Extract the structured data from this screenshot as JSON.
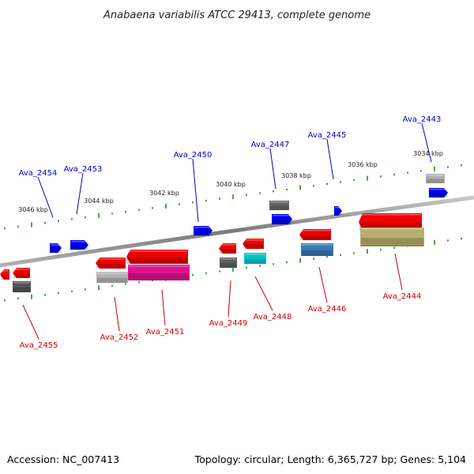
{
  "title": "Anabaena variabilis ATCC 29413, complete genome",
  "footer": {
    "accession": "Accession: NC_007413",
    "summary": "Topology: circular; Length: 6,365,727 bp; Genes: 5,104"
  },
  "colors": {
    "forward_label": "#0000cc",
    "reverse_label": "#cc0000",
    "forward_gene": "#0000ee",
    "reverse_gene": "#ee0000",
    "tick": "#228b22",
    "backbone": "#888888"
  },
  "scale_ticks": [
    "3046 kbp",
    "3044 kbp",
    "3042 kbp",
    "3040 kbp",
    "3038 kbp",
    "3036 kbp",
    "3034 kbp"
  ],
  "forward_genes": [
    "Ava_2454",
    "Ava_2453",
    "Ava_2450",
    "Ava_2447",
    "Ava_2445",
    "Ava_2443"
  ],
  "reverse_genes": [
    "Ava_2455",
    "Ava_2452",
    "Ava_2451",
    "Ava_2449",
    "Ava_2448",
    "Ava_2446",
    "Ava_2444"
  ]
}
